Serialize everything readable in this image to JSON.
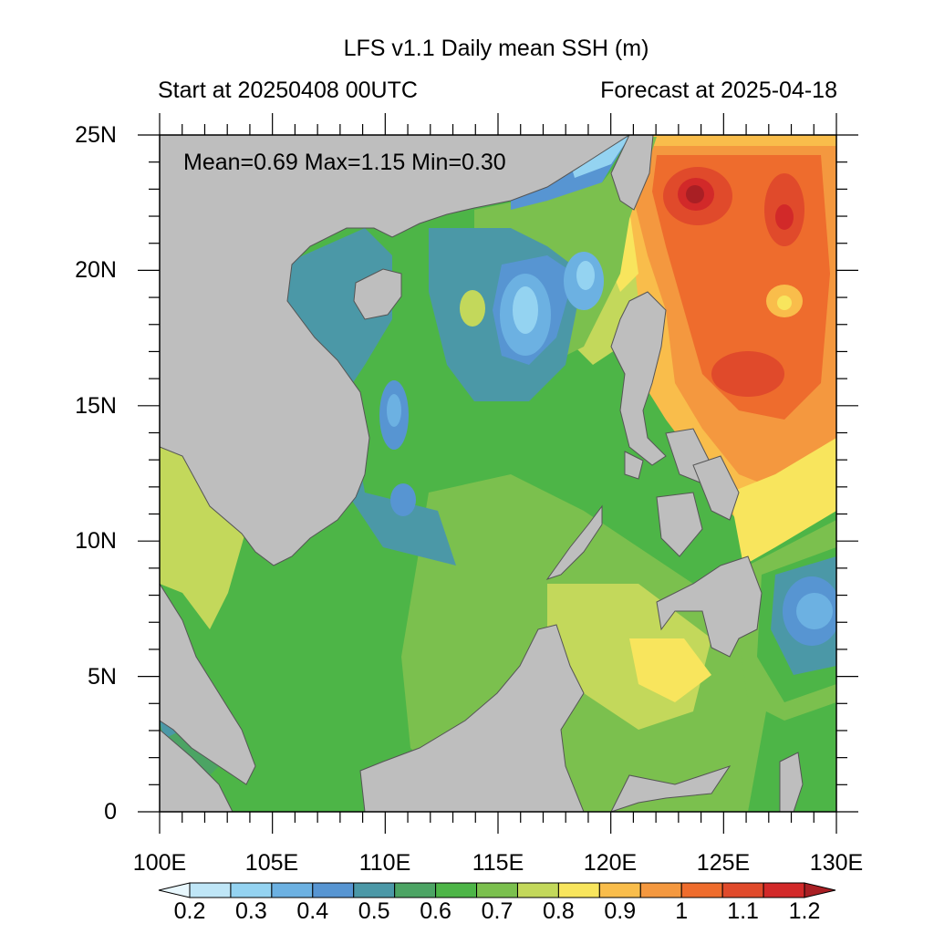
{
  "title": "LFS v1.1 Daily mean SSH (m)",
  "subtitle_left": "Start at 20250408 00UTC",
  "subtitle_right": "Forecast at 2025-04-18",
  "stats": {
    "text": "Mean=0.69  Max=1.15  Min=0.30",
    "mean": 0.69,
    "max": 1.15,
    "min": 0.3
  },
  "map": {
    "lon_range": [
      100,
      130
    ],
    "lat_range": [
      0,
      25
    ],
    "land_color": "#bebebe",
    "lat_labels": [
      "0",
      "5N",
      "10N",
      "15N",
      "20N",
      "25N"
    ],
    "lon_labels": [
      "100E",
      "105E",
      "110E",
      "115E",
      "120E",
      "125E",
      "130E"
    ]
  },
  "colorbar": {
    "labels": [
      "0.2",
      "0.3",
      "0.4",
      "0.5",
      "0.6",
      "0.7",
      "0.8",
      "0.9",
      "1",
      "1.1",
      "1.2"
    ],
    "colors": [
      "#e8f7fd",
      "#bfe6f7",
      "#94d3f1",
      "#6cb1e2",
      "#5795d2",
      "#4b98a7",
      "#4ca464",
      "#4db547",
      "#7bc04e",
      "#c3d85b",
      "#f8e55d",
      "#f9bd4b",
      "#f4983f",
      "#ee6c2d",
      "#e04a2b",
      "#d22929",
      "#a91f24"
    ]
  }
}
